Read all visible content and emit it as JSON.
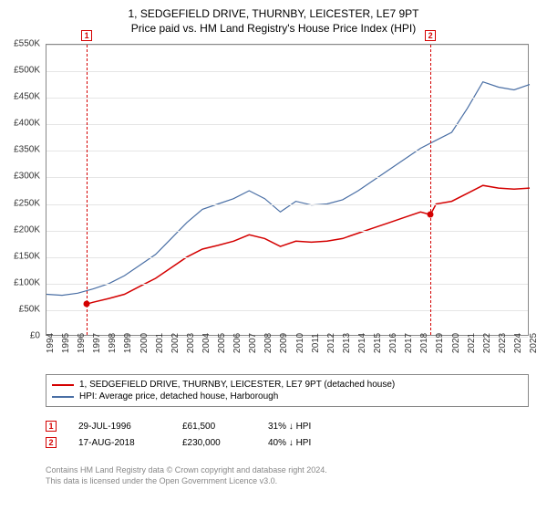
{
  "title": "1, SEDGEFIELD DRIVE, THURNBY, LEICESTER, LE7 9PT",
  "subtitle": "Price paid vs. HM Land Registry's House Price Index (HPI)",
  "chart": {
    "type": "line",
    "background_color": "#ffffff",
    "grid_color": "#e5e5e5",
    "axis_color": "#888888",
    "ylim": [
      0,
      550000
    ],
    "ytick_step": 50000,
    "yticks": [
      "£0",
      "£50K",
      "£100K",
      "£150K",
      "£200K",
      "£250K",
      "£300K",
      "£350K",
      "£400K",
      "£450K",
      "£500K",
      "£550K"
    ],
    "xlim": [
      1994,
      2025
    ],
    "xticks": [
      1994,
      1995,
      1996,
      1997,
      1998,
      1999,
      2000,
      2001,
      2002,
      2003,
      2004,
      2005,
      2006,
      2007,
      2008,
      2009,
      2010,
      2011,
      2012,
      2013,
      2014,
      2015,
      2016,
      2017,
      2018,
      2019,
      2020,
      2021,
      2022,
      2023,
      2024,
      2025
    ],
    "series": [
      {
        "name": "property",
        "label": "1, SEDGEFIELD DRIVE, THURNBY, LEICESTER, LE7 9PT (detached house)",
        "color": "#d40000",
        "line_width": 1.5,
        "data": [
          [
            1996.58,
            61500
          ],
          [
            1997,
            65000
          ],
          [
            1998,
            72000
          ],
          [
            1999,
            80000
          ],
          [
            2000,
            95000
          ],
          [
            2001,
            110000
          ],
          [
            2002,
            130000
          ],
          [
            2003,
            150000
          ],
          [
            2004,
            165000
          ],
          [
            2005,
            172000
          ],
          [
            2006,
            180000
          ],
          [
            2007,
            192000
          ],
          [
            2008,
            185000
          ],
          [
            2009,
            170000
          ],
          [
            2010,
            180000
          ],
          [
            2011,
            178000
          ],
          [
            2012,
            180000
          ],
          [
            2013,
            185000
          ],
          [
            2014,
            195000
          ],
          [
            2015,
            205000
          ],
          [
            2016,
            215000
          ],
          [
            2017,
            225000
          ],
          [
            2018,
            235000
          ],
          [
            2018.63,
            230000
          ],
          [
            2019,
            250000
          ],
          [
            2020,
            255000
          ],
          [
            2021,
            270000
          ],
          [
            2022,
            285000
          ],
          [
            2023,
            280000
          ],
          [
            2024,
            278000
          ],
          [
            2025,
            280000
          ]
        ]
      },
      {
        "name": "hpi",
        "label": "HPI: Average price, detached house, Harborough",
        "color": "#4a6fa5",
        "line_width": 1.2,
        "data": [
          [
            1994,
            80000
          ],
          [
            1995,
            78000
          ],
          [
            1996,
            82000
          ],
          [
            1997,
            90000
          ],
          [
            1998,
            100000
          ],
          [
            1999,
            115000
          ],
          [
            2000,
            135000
          ],
          [
            2001,
            155000
          ],
          [
            2002,
            185000
          ],
          [
            2003,
            215000
          ],
          [
            2004,
            240000
          ],
          [
            2005,
            250000
          ],
          [
            2006,
            260000
          ],
          [
            2007,
            275000
          ],
          [
            2008,
            260000
          ],
          [
            2009,
            235000
          ],
          [
            2010,
            255000
          ],
          [
            2011,
            248000
          ],
          [
            2012,
            250000
          ],
          [
            2013,
            258000
          ],
          [
            2014,
            275000
          ],
          [
            2015,
            295000
          ],
          [
            2016,
            315000
          ],
          [
            2017,
            335000
          ],
          [
            2018,
            355000
          ],
          [
            2019,
            370000
          ],
          [
            2020,
            385000
          ],
          [
            2021,
            430000
          ],
          [
            2022,
            480000
          ],
          [
            2023,
            470000
          ],
          [
            2024,
            465000
          ],
          [
            2025,
            475000
          ]
        ]
      }
    ],
    "events": [
      {
        "n": "1",
        "year": 1996.58,
        "price": 61500,
        "date": "29-JUL-1996",
        "price_fmt": "£61,500",
        "pct": "31% ↓ HPI",
        "color": "#d40000"
      },
      {
        "n": "2",
        "year": 2018.63,
        "price": 230000,
        "date": "17-AUG-2018",
        "price_fmt": "£230,000",
        "pct": "40% ↓ HPI",
        "color": "#d40000"
      }
    ]
  },
  "footer_line1": "Contains HM Land Registry data © Crown copyright and database right 2024.",
  "footer_line2": "This data is licensed under the Open Government Licence v3.0."
}
